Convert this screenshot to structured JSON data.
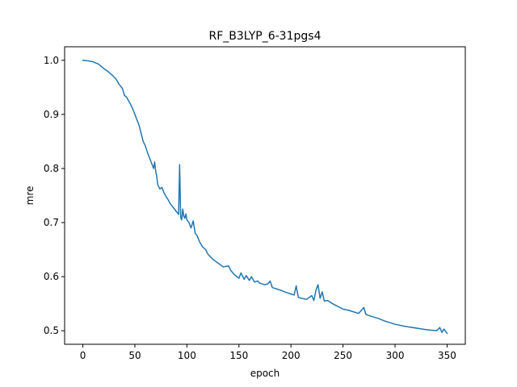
{
  "chart_data": {
    "type": "line",
    "title": "RF_B3LYP_6-31pgs4",
    "xlabel": "epoch",
    "ylabel": "mre",
    "xlim": [
      -17.5,
      367.5
    ],
    "ylim": [
      0.475,
      1.025
    ],
    "xticks": [
      0,
      50,
      100,
      150,
      200,
      250,
      300,
      350
    ],
    "yticks": [
      0.5,
      0.6,
      0.7,
      0.8,
      0.9,
      1.0
    ],
    "xtick_labels": [
      "0",
      "50",
      "100",
      "150",
      "200",
      "250",
      "300",
      "350"
    ],
    "ytick_labels": [
      "0.5",
      "0.6",
      "0.7",
      "0.8",
      "0.9",
      "1.0"
    ],
    "grid": false,
    "series": [
      {
        "color": "#1f77b4",
        "x": [
          0,
          5,
          10,
          15,
          20,
          25,
          28,
          32,
          35,
          38,
          40,
          42,
          44,
          46,
          48,
          50,
          52,
          54,
          56,
          58,
          60,
          62,
          64,
          66,
          68,
          69,
          70,
          71,
          72,
          74,
          76,
          78,
          80,
          82,
          84,
          86,
          88,
          90,
          91,
          92,
          93,
          94,
          95,
          96,
          97,
          98,
          99,
          100,
          102,
          104,
          106,
          108,
          110,
          112,
          115,
          118,
          120,
          125,
          130,
          135,
          140,
          142,
          145,
          148,
          150,
          152,
          155,
          157,
          160,
          162,
          165,
          168,
          170,
          175,
          178,
          180,
          182,
          185,
          190,
          195,
          200,
          203,
          205,
          207,
          210,
          215,
          220,
          222,
          224,
          226,
          228,
          230,
          232,
          235,
          240,
          245,
          250,
          255,
          260,
          265,
          270,
          272,
          275,
          280,
          285,
          290,
          295,
          300,
          310,
          320,
          330,
          340,
          343,
          345,
          347,
          350
        ],
        "y": [
          1.0,
          0.999,
          0.997,
          0.993,
          0.985,
          0.978,
          0.973,
          0.965,
          0.955,
          0.948,
          0.935,
          0.932,
          0.925,
          0.918,
          0.91,
          0.9,
          0.89,
          0.88,
          0.865,
          0.85,
          0.842,
          0.83,
          0.82,
          0.81,
          0.8,
          0.812,
          0.795,
          0.785,
          0.77,
          0.762,
          0.765,
          0.755,
          0.748,
          0.742,
          0.735,
          0.73,
          0.725,
          0.72,
          0.718,
          0.715,
          0.807,
          0.71,
          0.705,
          0.725,
          0.712,
          0.708,
          0.716,
          0.705,
          0.7,
          0.69,
          0.703,
          0.68,
          0.675,
          0.665,
          0.655,
          0.65,
          0.642,
          0.632,
          0.625,
          0.618,
          0.62,
          0.612,
          0.605,
          0.6,
          0.597,
          0.607,
          0.595,
          0.602,
          0.593,
          0.6,
          0.59,
          0.592,
          0.588,
          0.585,
          0.587,
          0.592,
          0.58,
          0.578,
          0.575,
          0.571,
          0.568,
          0.566,
          0.583,
          0.562,
          0.56,
          0.558,
          0.565,
          0.556,
          0.575,
          0.585,
          0.56,
          0.572,
          0.555,
          0.556,
          0.55,
          0.545,
          0.54,
          0.538,
          0.535,
          0.532,
          0.543,
          0.53,
          0.528,
          0.525,
          0.522,
          0.518,
          0.515,
          0.512,
          0.508,
          0.505,
          0.502,
          0.5,
          0.506,
          0.497,
          0.503,
          0.495
        ]
      }
    ]
  }
}
